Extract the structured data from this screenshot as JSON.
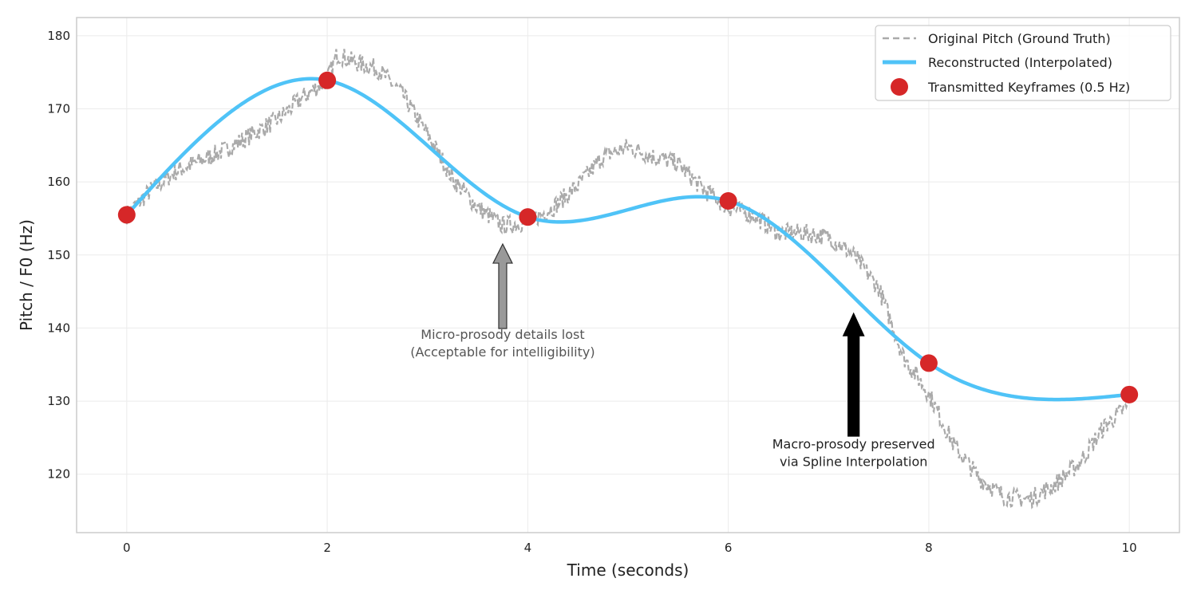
{
  "chart_data": {
    "type": "line",
    "title": "",
    "xlabel": "Time (seconds)",
    "ylabel": "Pitch / F0 (Hz)",
    "xlim": [
      -0.5,
      10.5
    ],
    "ylim": [
      112,
      182.5
    ],
    "xticks": [
      0,
      2,
      4,
      6,
      8,
      10
    ],
    "yticks": [
      120,
      130,
      140,
      150,
      160,
      170,
      180
    ],
    "grid": true,
    "legend_position": "top-right",
    "series": [
      {
        "name": "Original Pitch (Ground Truth)",
        "style": "dashed",
        "color": "#aaaaaa",
        "x": [
          0.0,
          0.25,
          0.5,
          0.75,
          1.0,
          1.25,
          1.5,
          1.75,
          2.0,
          2.1,
          2.25,
          2.5,
          2.75,
          3.0,
          3.25,
          3.5,
          3.75,
          4.0,
          4.25,
          4.5,
          4.75,
          5.0,
          5.25,
          5.5,
          5.75,
          6.0,
          6.25,
          6.5,
          6.75,
          7.0,
          7.25,
          7.5,
          7.75,
          8.0,
          8.25,
          8.5,
          8.75,
          9.0,
          9.25,
          9.5,
          9.75,
          10.0
        ],
        "y": [
          155.5,
          159.0,
          161.5,
          163.0,
          164.5,
          166.5,
          168.5,
          171.5,
          174.0,
          177.5,
          176.5,
          175.5,
          172.0,
          166.5,
          160.5,
          156.5,
          154.0,
          154.5,
          156.5,
          159.5,
          163.5,
          164.8,
          163.5,
          162.5,
          159.0,
          156.5,
          155.5,
          153.0,
          153.0,
          152.5,
          150.0,
          145.5,
          136.0,
          131.0,
          124.0,
          119.5,
          117.0,
          116.5,
          118.5,
          121.5,
          126.5,
          129.5
        ]
      },
      {
        "name": "Reconstructed (Interpolated)",
        "style": "solid",
        "color": "#4fc3f7",
        "x": [
          0,
          2,
          4,
          6,
          8,
          10
        ],
        "y": [
          155.5,
          173.9,
          155.2,
          157.4,
          135.2,
          130.9
        ]
      },
      {
        "name": "Transmitted Keyframes (0.5 Hz)",
        "style": "markers",
        "color": "#d62728",
        "x": [
          0,
          2,
          4,
          6,
          8,
          10
        ],
        "y": [
          155.5,
          173.9,
          155.2,
          157.4,
          135.2,
          130.9
        ]
      }
    ],
    "annotations": [
      {
        "text_line1": "Micro-prosody details lost",
        "text_line2": "(Acceptable for intelligibility)",
        "text_x": 3.75,
        "text_y": 138.5,
        "arrow_to_x": 3.75,
        "arrow_to_y": 151.5,
        "arrow_color": "#999999",
        "text_color": "#555555"
      },
      {
        "text_line1": "Macro-prosody preserved",
        "text_line2": "via Spline Interpolation",
        "text_x": 7.25,
        "text_y": 123.5,
        "arrow_to_x": 7.25,
        "arrow_to_y": 142.0,
        "arrow_color": "#000000",
        "text_color": "#222222"
      }
    ]
  }
}
